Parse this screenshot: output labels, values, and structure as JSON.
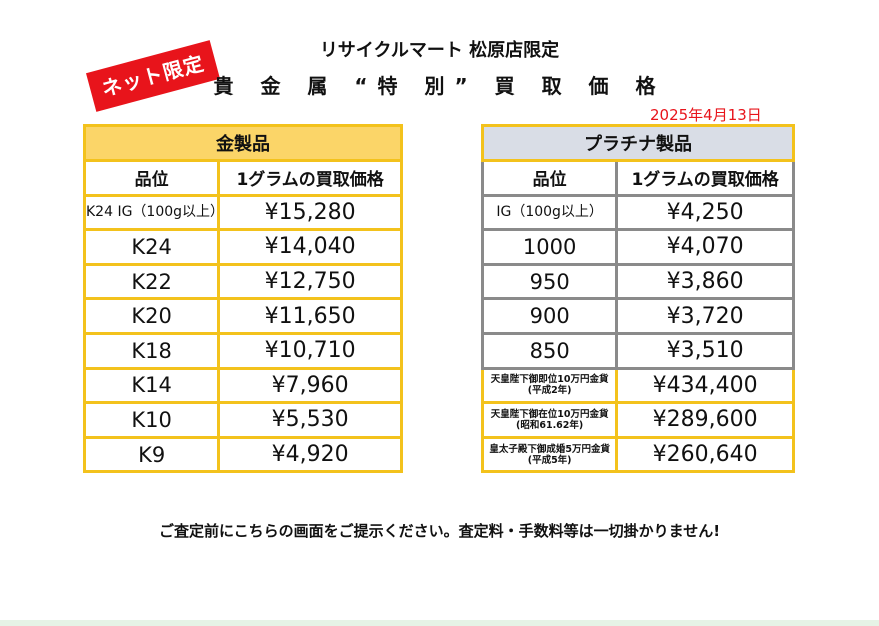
{
  "badge": "ネット限定",
  "header": {
    "store": "リサイクルマート 松原店限定",
    "title": "貴 金 属 “特 別” 買 取 価 格",
    "date": "2025年4月13日"
  },
  "gold": {
    "heading": "金製品",
    "col_grade": "品位",
    "col_price": "1グラムの買取価格",
    "rows": [
      {
        "grade": "K24 IG（100g以上）",
        "price": "¥15,280"
      },
      {
        "grade": "K24",
        "price": "¥14,040"
      },
      {
        "grade": "K22",
        "price": "¥12,750"
      },
      {
        "grade": "K20",
        "price": "¥11,650"
      },
      {
        "grade": "K18",
        "price": "¥10,710"
      },
      {
        "grade": "K14",
        "price": "¥7,960"
      },
      {
        "grade": "K10",
        "price": "¥5,530"
      },
      {
        "grade": "K9",
        "price": "¥4,920"
      }
    ]
  },
  "platinum": {
    "heading": "プラチナ製品",
    "col_grade": "品位",
    "col_price": "1グラムの買取価格",
    "rows": [
      {
        "grade": "IG（100g以上）",
        "price": "¥4,250"
      },
      {
        "grade": "1000",
        "price": "¥4,070"
      },
      {
        "grade": "950",
        "price": "¥3,860"
      },
      {
        "grade": "900",
        "price": "¥3,720"
      },
      {
        "grade": "850",
        "price": "¥3,510"
      },
      {
        "grade": "天皇陛下御即位10万円金貨(平成2年)",
        "price": "¥434,400"
      },
      {
        "grade": "天皇陛下御在位10万円金貨(昭和61.62年)",
        "price": "¥289,600"
      },
      {
        "grade": "皇太子殿下御成婚5万円金貨(平成5年)",
        "price": "¥260,640"
      }
    ]
  },
  "footer": "ご査定前にこちらの画面をご提示ください。査定料・手数料等は一切掛かりません!",
  "colors": {
    "red": "#e8141b",
    "gold_header": "#fbd568",
    "plat_header": "#d9dde6",
    "gold_border": "#f3c21c"
  }
}
